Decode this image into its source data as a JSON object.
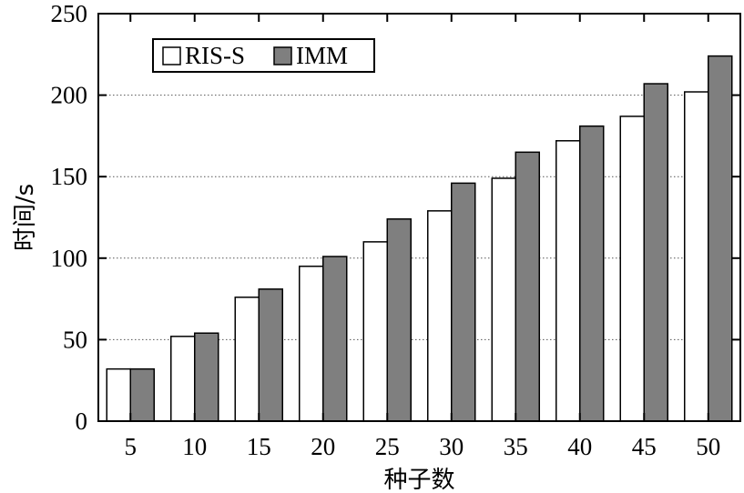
{
  "chart_data": {
    "type": "bar",
    "xlabel": "种子数",
    "ylabel": "时间/s",
    "categories": [
      "5",
      "10",
      "15",
      "20",
      "25",
      "30",
      "35",
      "40",
      "45",
      "50"
    ],
    "series": [
      {
        "name": "RIS-S",
        "color": "#ffffff",
        "values": [
          32,
          52,
          76,
          95,
          110,
          129,
          149,
          172,
          187,
          202
        ]
      },
      {
        "name": "IMM",
        "color": "#7f7f7f",
        "values": [
          32,
          54,
          81,
          101,
          124,
          146,
          165,
          181,
          207,
          224
        ]
      }
    ],
    "ylim": [
      0,
      250
    ],
    "yticks": [
      0,
      50,
      100,
      150,
      200,
      250
    ],
    "grid": "horizontal-dotted",
    "legend": "top-left"
  }
}
